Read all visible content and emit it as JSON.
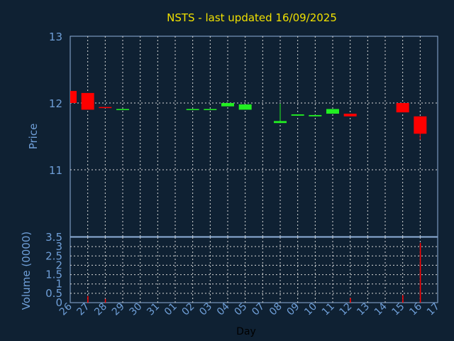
{
  "chart_data": [
    {
      "type": "candlestick",
      "title": "NSTS - last updated 16/09/2025",
      "ylabel": "Price",
      "ylim": [
        10,
        13
      ],
      "yticks": [
        "11",
        "12",
        "13"
      ],
      "categories": [
        "26",
        "27",
        "28",
        "29",
        "30",
        "31",
        "01",
        "02",
        "03",
        "04",
        "05",
        "07",
        "08",
        "09",
        "10",
        "11",
        "12",
        "13",
        "14",
        "15",
        "16",
        "17"
      ],
      "colors": {
        "up": "#22ee22",
        "down": "#ff0000"
      },
      "candles": [
        {
          "day": "26",
          "open": 12.18,
          "close": 12.0,
          "high": 12.18,
          "low": 12.0
        },
        {
          "day": "27",
          "open": 12.15,
          "close": 11.9,
          "high": 12.15,
          "low": 11.9
        },
        {
          "day": "28",
          "open": 11.94,
          "close": 11.93,
          "high": 11.94,
          "low": 11.93
        },
        {
          "day": "29",
          "open": 11.9,
          "close": 11.91,
          "high": 11.91,
          "low": 11.9
        },
        {
          "day": "02",
          "open": 11.9,
          "close": 11.91,
          "high": 11.91,
          "low": 11.9
        },
        {
          "day": "03",
          "open": 11.9,
          "close": 11.91,
          "high": 11.91,
          "low": 11.9
        },
        {
          "day": "04",
          "open": 11.95,
          "close": 12.0,
          "high": 12.0,
          "low": 11.95
        },
        {
          "day": "05",
          "open": 11.9,
          "close": 11.98,
          "high": 11.98,
          "low": 11.9
        },
        {
          "day": "08",
          "open": 11.7,
          "close": 11.73,
          "high": 11.99,
          "low": 11.7
        },
        {
          "day": "09",
          "open": 11.81,
          "close": 11.83,
          "high": 11.83,
          "low": 11.81
        },
        {
          "day": "10",
          "open": 11.8,
          "close": 11.82,
          "high": 11.82,
          "low": 11.8
        },
        {
          "day": "11",
          "open": 11.84,
          "close": 11.91,
          "high": 11.91,
          "low": 11.84
        },
        {
          "day": "12",
          "open": 11.84,
          "close": 11.8,
          "high": 11.84,
          "low": 11.8
        },
        {
          "day": "15",
          "open": 12.0,
          "close": 11.86,
          "high": 12.0,
          "low": 11.86
        },
        {
          "day": "16",
          "open": 11.8,
          "close": 11.54,
          "high": 11.8,
          "low": 11.45
        }
      ]
    },
    {
      "type": "bar",
      "xlabel": "Day",
      "ylabel": "Volume (0000)",
      "ylim": [
        0,
        3.5
      ],
      "yticks": [
        "0",
        "0.5",
        "1",
        "1.5",
        "2",
        "2.5",
        "3",
        "3.5"
      ],
      "categories": [
        "26",
        "27",
        "28",
        "29",
        "30",
        "31",
        "01",
        "02",
        "03",
        "04",
        "05",
        "07",
        "08",
        "09",
        "10",
        "11",
        "12",
        "13",
        "14",
        "15",
        "16",
        "17"
      ],
      "bars": [
        {
          "day": "27",
          "value": 0.35,
          "color": "#ff0000"
        },
        {
          "day": "28",
          "value": 0.2,
          "color": "#ff0000"
        },
        {
          "day": "12",
          "value": 0.25,
          "color": "#ff0000"
        },
        {
          "day": "15",
          "value": 0.4,
          "color": "#ff0000"
        },
        {
          "day": "16",
          "value": 3.2,
          "color": "#ff0000"
        }
      ]
    }
  ]
}
